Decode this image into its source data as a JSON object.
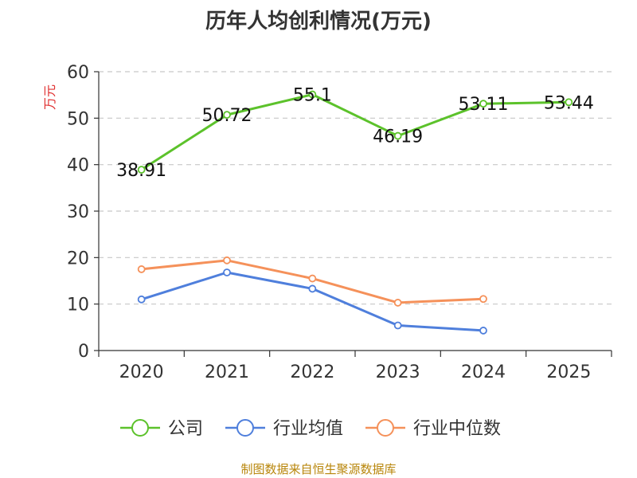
{
  "title": "历年人均创利情况(万元)",
  "source": "制图数据来自恒生聚源数据库",
  "colors": {
    "company": "#5cc22b",
    "industry_avg": "#4f7fdc",
    "industry_median": "#f5915a",
    "ylabel": "#e03030",
    "source": "#b8860b"
  },
  "chart_data": {
    "type": "line",
    "title": "历年人均创利情况(万元)",
    "xlabel": "",
    "ylabel": "万元",
    "ylim": [
      0,
      60
    ],
    "yticks": [
      "0",
      "10",
      "20",
      "30",
      "40",
      "50",
      "60"
    ],
    "categories": [
      "2020",
      "2021",
      "2022",
      "2023",
      "2024",
      "2025"
    ],
    "grid": true,
    "legend_position": "bottom",
    "series": [
      {
        "name": "公司",
        "key": "company",
        "values": [
          38.91,
          50.72,
          55.1,
          46.19,
          53.11,
          53.44
        ],
        "labels": [
          "38.91",
          "50.72",
          "55.1",
          "46.19",
          "53.11",
          "53.44"
        ]
      },
      {
        "name": "行业均值",
        "key": "industry_avg",
        "values": [
          11.0,
          16.8,
          13.3,
          5.4,
          4.3,
          null
        ]
      },
      {
        "name": "行业中位数",
        "key": "industry_median",
        "values": [
          17.5,
          19.4,
          15.5,
          10.3,
          11.1,
          null
        ]
      }
    ]
  }
}
